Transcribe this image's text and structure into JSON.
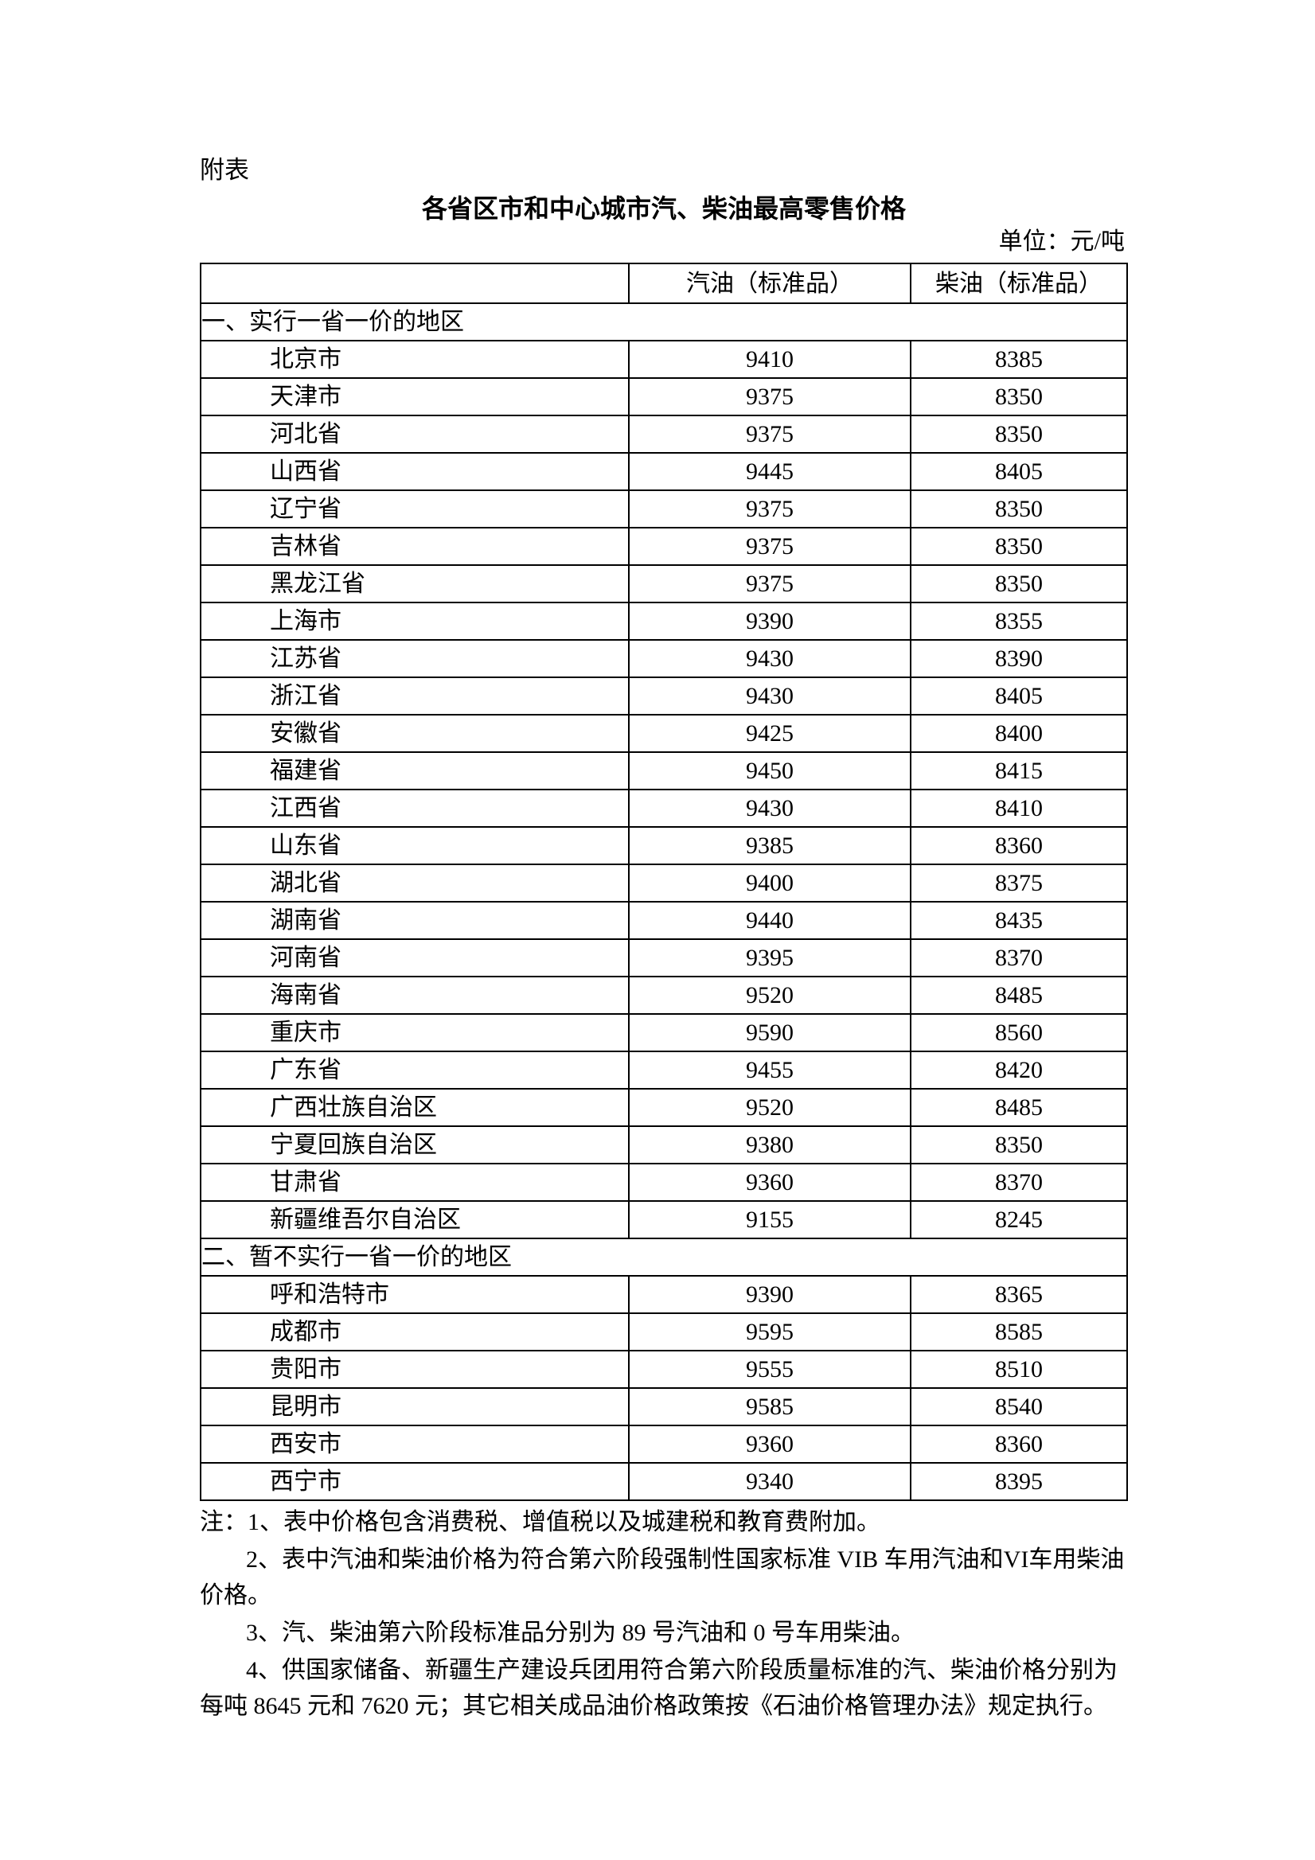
{
  "attachment_label": "附表",
  "title": "各省区市和中心城市汽、柴油最高零售价格",
  "unit": "单位：元/吨",
  "table": {
    "headers": [
      "",
      "汽油（标准品）",
      "柴油（标准品）"
    ],
    "sections": [
      {
        "label": "一、实行一省一价的地区",
        "rows": [
          [
            "北京市",
            "9410",
            "8385"
          ],
          [
            "天津市",
            "9375",
            "8350"
          ],
          [
            "河北省",
            "9375",
            "8350"
          ],
          [
            "山西省",
            "9445",
            "8405"
          ],
          [
            "辽宁省",
            "9375",
            "8350"
          ],
          [
            "吉林省",
            "9375",
            "8350"
          ],
          [
            "黑龙江省",
            "9375",
            "8350"
          ],
          [
            "上海市",
            "9390",
            "8355"
          ],
          [
            "江苏省",
            "9430",
            "8390"
          ],
          [
            "浙江省",
            "9430",
            "8405"
          ],
          [
            "安徽省",
            "9425",
            "8400"
          ],
          [
            "福建省",
            "9450",
            "8415"
          ],
          [
            "江西省",
            "9430",
            "8410"
          ],
          [
            "山东省",
            "9385",
            "8360"
          ],
          [
            "湖北省",
            "9400",
            "8375"
          ],
          [
            "湖南省",
            "9440",
            "8435"
          ],
          [
            "河南省",
            "9395",
            "8370"
          ],
          [
            "海南省",
            "9520",
            "8485"
          ],
          [
            "重庆市",
            "9590",
            "8560"
          ],
          [
            "广东省",
            "9455",
            "8420"
          ],
          [
            "广西壮族自治区",
            "9520",
            "8485"
          ],
          [
            "宁夏回族自治区",
            "9380",
            "8350"
          ],
          [
            "甘肃省",
            "9360",
            "8370"
          ],
          [
            "新疆维吾尔自治区",
            "9155",
            "8245"
          ]
        ]
      },
      {
        "label": "二、暂不实行一省一价的地区",
        "rows": [
          [
            "呼和浩特市",
            "9390",
            "8365"
          ],
          [
            "成都市",
            "9595",
            "8585"
          ],
          [
            "贵阳市",
            "9555",
            "8510"
          ],
          [
            "昆明市",
            "9585",
            "8540"
          ],
          [
            "西安市",
            "9360",
            "8360"
          ],
          [
            "西宁市",
            "9340",
            "8395"
          ]
        ]
      }
    ]
  },
  "notes": [
    "注：1、表中价格包含消费税、增值税以及城建税和教育费附加。",
    "2、表中汽油和柴油价格为符合第六阶段强制性国家标准 VIB 车用汽油和VI车用柴油价格。",
    "3、汽、柴油第六阶段标准品分别为 89 号汽油和 0 号车用柴油。",
    "4、供国家储备、新疆生产建设兵团用符合第六阶段质量标准的汽、柴油价格分别为每吨 8645 元和 7620 元；其它相关成品油价格政策按《石油价格管理办法》规定执行。"
  ]
}
